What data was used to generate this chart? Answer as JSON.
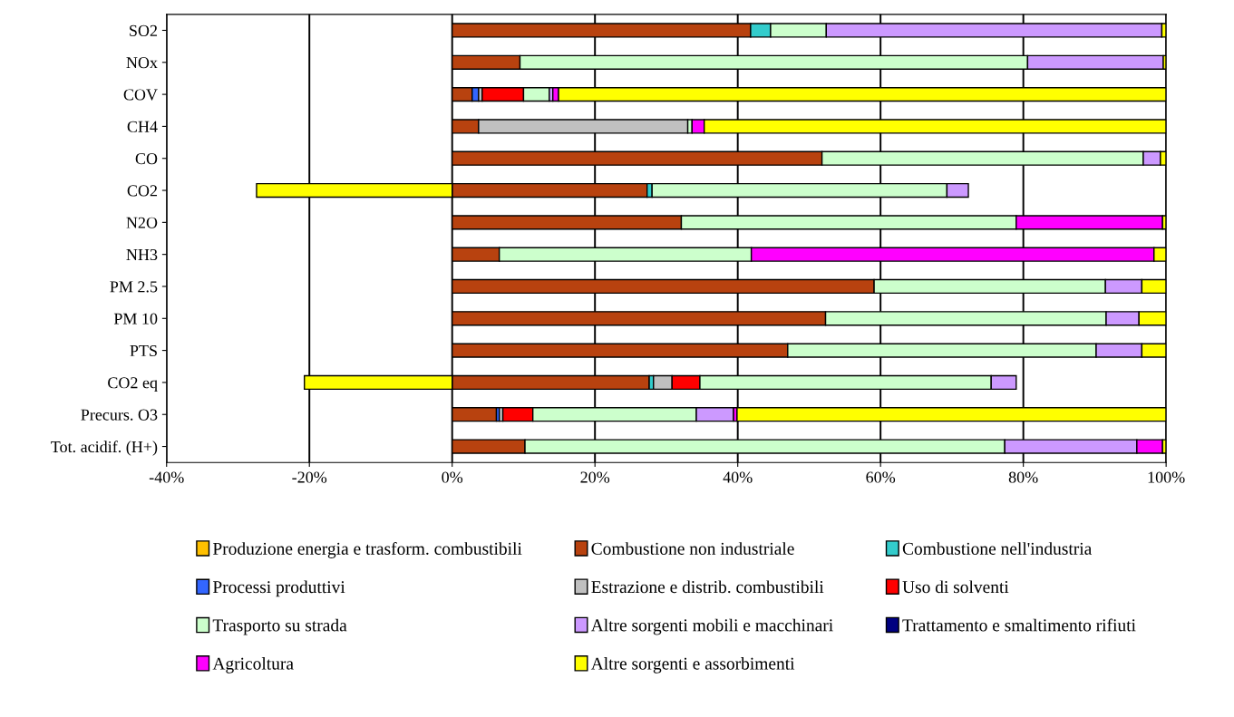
{
  "chart_data": {
    "type": "bar",
    "orientation": "horizontal",
    "stacked": true,
    "categories": [
      "SO2",
      "NOx",
      "COV",
      "CH4",
      "CO",
      "CO2",
      "N2O",
      "NH3",
      "PM 2.5",
      "PM 10",
      "PTS",
      "CO2 eq",
      "Precurs. O3",
      "Tot. acidif. (H+)"
    ],
    "series": [
      {
        "name": "Produzione energia e trasform. combustibili",
        "color": "#ffc000",
        "values": [
          0,
          0,
          0,
          0,
          0,
          0,
          0,
          0,
          0,
          0,
          0,
          0,
          0,
          0
        ]
      },
      {
        "name": "Combustione non industriale",
        "color": "#b8420f",
        "values": [
          41.8,
          9.5,
          2.8,
          3.7,
          51.8,
          27.3,
          32.1,
          6.6,
          59.1,
          52.3,
          47.0,
          27.6,
          6.2,
          10.2
        ]
      },
      {
        "name": "Combustione nell'industria",
        "color": "#33cccc",
        "values": [
          2.8,
          0,
          0,
          0,
          0,
          0.7,
          0,
          0,
          0,
          0,
          0,
          0.6,
          0,
          0
        ]
      },
      {
        "name": "Processi produttivi",
        "color": "#3366ff",
        "values": [
          0,
          0,
          0.9,
          0,
          0,
          0,
          0,
          0,
          0,
          0,
          0,
          0,
          0.4,
          0
        ]
      },
      {
        "name": "Estrazione e distrib. combustibili",
        "color": "#c0c0c0",
        "values": [
          0,
          0,
          0.5,
          29.3,
          0,
          0,
          0,
          0,
          0,
          0,
          0,
          2.6,
          0.5,
          0
        ]
      },
      {
        "name": "Uso di solventi",
        "color": "#ff0000",
        "values": [
          0,
          0,
          5.8,
          0,
          0,
          0,
          0,
          0,
          0,
          0,
          0,
          3.9,
          4.2,
          0
        ]
      },
      {
        "name": "Trasporto su strada",
        "color": "#ccffcc",
        "values": [
          7.8,
          71.1,
          3.6,
          0.6,
          45.0,
          41.3,
          46.9,
          35.3,
          32.4,
          39.3,
          43.2,
          40.8,
          22.9,
          67.2
        ]
      },
      {
        "name": "Altre sorgenti mobili e macchinari",
        "color": "#cc99ff",
        "values": [
          47.0,
          19.0,
          0.5,
          0,
          2.4,
          3.0,
          0,
          0,
          5.1,
          4.6,
          6.4,
          3.5,
          5.2,
          18.5
        ]
      },
      {
        "name": "Trattamento e smaltimento rifiuti",
        "color": "#000080",
        "values": [
          0,
          0,
          0,
          0,
          0,
          0,
          0,
          0,
          0,
          0,
          0,
          0,
          0,
          0
        ]
      },
      {
        "name": "Agricoltura",
        "color": "#ff00ff",
        "values": [
          0,
          0,
          0.8,
          1.7,
          0,
          0,
          20.5,
          56.4,
          0,
          0,
          0,
          0,
          0.5,
          3.6
        ]
      },
      {
        "name": "Altre sorgenti e assorbimenti",
        "color": "#ffff00",
        "values": [
          0.6,
          0.4,
          85.1,
          64.7,
          0.8,
          -27.4,
          0.5,
          1.7,
          3.4,
          3.8,
          3.4,
          -20.7,
          60.1,
          0.5
        ]
      }
    ],
    "xlim": [
      -40,
      100
    ],
    "xticks": [
      {
        "value": -40,
        "label": "-40%"
      },
      {
        "value": -20,
        "label": "-20%"
      },
      {
        "value": 0,
        "label": "0%"
      },
      {
        "value": 20,
        "label": "20%"
      },
      {
        "value": 40,
        "label": "40%"
      },
      {
        "value": 60,
        "label": "60%"
      },
      {
        "value": 80,
        "label": "80%"
      },
      {
        "value": 100,
        "label": "100%"
      }
    ],
    "grid": "x",
    "legend": "bottom"
  }
}
